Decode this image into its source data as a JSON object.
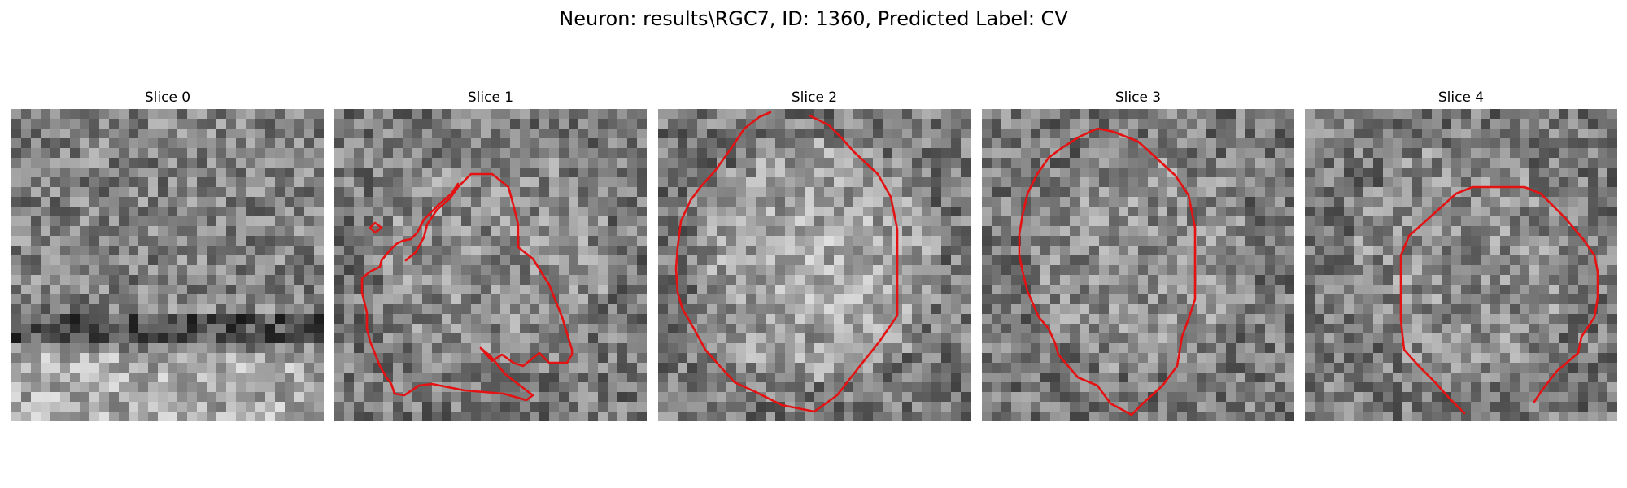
{
  "figure": {
    "title": "Neuron: results\\RGC7, ID: 1360, Predicted Label: CV"
  },
  "panels": [
    {
      "title": "Slice 0"
    },
    {
      "title": "Slice 1"
    },
    {
      "title": "Slice 2"
    },
    {
      "title": "Slice 3"
    },
    {
      "title": "Slice 4"
    }
  ],
  "colors": {
    "contour": "#e41212"
  }
}
